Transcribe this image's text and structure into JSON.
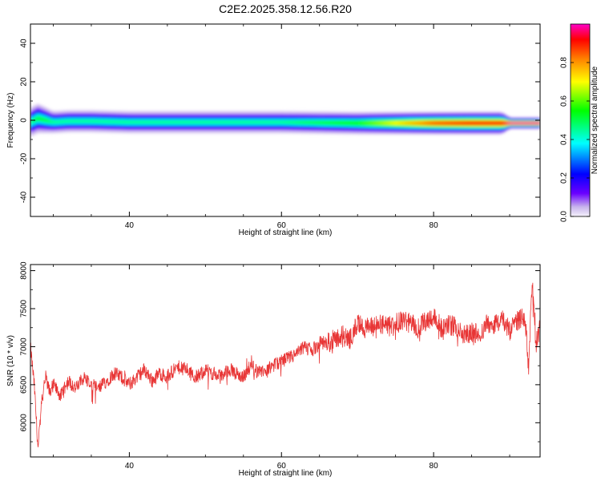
{
  "title": "C2E2.2025.358.12.56.R20",
  "colors": {
    "line": "#e83535",
    "axis": "#000000",
    "band_outer": "#ead8f4",
    "background": "#ffffff"
  },
  "chart_data": [
    {
      "type": "heatmap",
      "xlabel": "Height of straight line (km)",
      "ylabel": "Frequency (Hz)",
      "xlim": [
        27,
        94
      ],
      "ylim": [
        -50,
        50
      ],
      "xticks": [
        "40",
        "60",
        "80"
      ],
      "xtick_values": [
        40,
        60,
        80
      ],
      "yticks": [
        "40",
        "20",
        "0",
        "-20",
        "-40"
      ],
      "ytick_values": [
        40,
        20,
        0,
        -20,
        -40
      ],
      "colorbar": {
        "label": "Normalized spectral amplitude",
        "ticks": [
          "0.0",
          "0.2",
          "0.4",
          "0.6",
          "0.8"
        ],
        "tick_values": [
          0.0,
          0.2,
          0.4,
          0.6,
          0.8
        ],
        "range": [
          0,
          1
        ],
        "colormap": "rainbow"
      },
      "band": {
        "x": [
          27,
          28,
          29,
          30,
          32,
          35,
          40,
          50,
          60,
          70,
          75,
          80,
          85,
          89,
          90,
          94
        ],
        "center_hz": [
          -1,
          1,
          0,
          -1,
          -0.5,
          -0.5,
          -1,
          -1,
          -1,
          -1.5,
          -1.5,
          -1.5,
          -1.5,
          -1.5,
          -1.5,
          -1.5
        ],
        "half_width_hz": [
          4,
          4,
          3.5,
          3,
          3,
          3,
          3,
          3,
          3,
          3,
          3,
          3,
          3,
          3,
          1.5,
          1.5
        ],
        "peak_amplitude": [
          0.45,
          0.5,
          0.5,
          0.45,
          0.45,
          0.45,
          0.45,
          0.45,
          0.45,
          0.55,
          0.7,
          0.85,
          0.9,
          0.9,
          1.0,
          1.0
        ]
      }
    },
    {
      "type": "line",
      "xlabel": "Height of straight line (km)",
      "ylabel": "SNR (10 * v/v)",
      "xlim": [
        27,
        94
      ],
      "ylim": [
        5550,
        8080
      ],
      "xticks": [
        "40",
        "60",
        "80"
      ],
      "xtick_values": [
        40,
        60,
        80
      ],
      "yticks": [
        "8000",
        "7500",
        "7000",
        "6500",
        "6000"
      ],
      "ytick_values": [
        8000,
        7500,
        7000,
        6500,
        6000
      ],
      "series": [
        {
          "x": [
            27,
            27.5,
            28,
            28.5,
            29,
            29.5,
            30,
            31,
            32,
            33,
            34,
            35,
            36,
            37,
            38,
            39,
            40,
            41,
            42,
            43,
            44,
            45,
            46,
            47,
            48,
            49,
            50,
            51,
            52,
            53,
            54,
            55,
            56,
            57,
            58,
            59,
            60,
            61,
            62,
            63,
            64,
            65,
            66,
            67,
            68,
            69,
            70,
            71,
            72,
            73,
            74,
            75,
            76,
            77,
            78,
            79,
            80,
            81,
            82,
            83,
            84,
            85,
            86,
            87,
            88,
            89,
            90,
            91,
            92,
            92.5,
            93,
            93.5,
            94
          ],
          "y": [
            7000,
            6500,
            5650,
            6300,
            6600,
            6400,
            6500,
            6350,
            6550,
            6450,
            6600,
            6500,
            6450,
            6550,
            6650,
            6600,
            6500,
            6600,
            6700,
            6550,
            6650,
            6600,
            6700,
            6750,
            6650,
            6600,
            6700,
            6650,
            6600,
            6700,
            6650,
            6600,
            6750,
            6650,
            6700,
            6750,
            6800,
            6850,
            6900,
            7000,
            6950,
            7050,
            7050,
            7100,
            7150,
            7100,
            7300,
            7250,
            7250,
            7300,
            7250,
            7300,
            7350,
            7300,
            7250,
            7350,
            7400,
            7250,
            7300,
            7250,
            7150,
            7200,
            7150,
            7300,
            7300,
            7350,
            7200,
            7350,
            7400,
            6700,
            7900,
            7050,
            7250
          ]
        }
      ]
    }
  ]
}
